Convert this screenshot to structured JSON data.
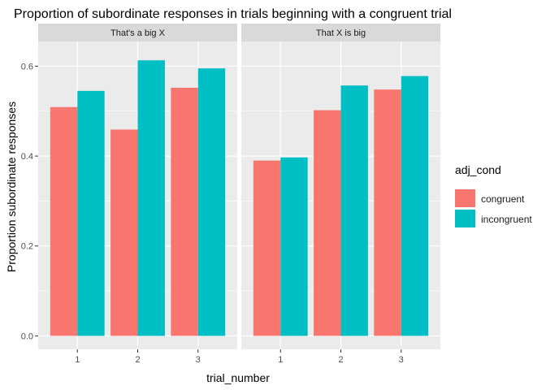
{
  "chart_data": {
    "type": "bar",
    "title": "Proportion of subordinate responses in trials beginning with a congruent trial",
    "xlabel": "trial_number",
    "ylabel": "Proportion subordinate responses",
    "ylim": [
      -0.03,
      0.655
    ],
    "yticks": [
      "0.0",
      "0.2",
      "0.4",
      "0.6"
    ],
    "categories": [
      "1",
      "2",
      "3"
    ],
    "grid": true,
    "legend": {
      "title": "adj_cond",
      "position": "right",
      "entries": [
        "congruent",
        "incongruent"
      ]
    },
    "colors": {
      "congruent": "#F8766D",
      "incongruent": "#00BFC4"
    },
    "facets": [
      {
        "label": "That's a big X",
        "series": [
          {
            "name": "congruent",
            "values": [
              0.509,
              0.459,
              0.552
            ]
          },
          {
            "name": "incongruent",
            "values": [
              0.545,
              0.613,
              0.595
            ]
          }
        ]
      },
      {
        "label": "That X is big",
        "series": [
          {
            "name": "congruent",
            "values": [
              0.39,
              0.502,
              0.548
            ]
          },
          {
            "name": "incongruent",
            "values": [
              0.397,
              0.557,
              0.578
            ]
          }
        ]
      }
    ]
  }
}
